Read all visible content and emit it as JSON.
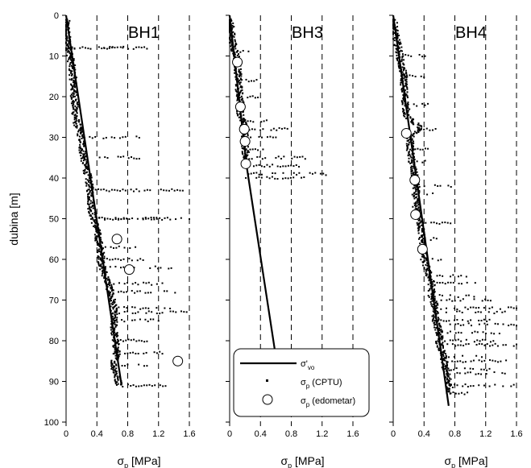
{
  "chart_data": {
    "type": "scatter",
    "y_axis": {
      "label": "dubina [m]",
      "ticks": [
        0,
        10,
        20,
        30,
        40,
        50,
        60,
        70,
        80,
        90,
        100
      ],
      "range": [
        0,
        100
      ],
      "inverted": true
    },
    "x_axis": {
      "label_symbol": "σ",
      "label_subscript": "p",
      "label_unit": " [MPa]",
      "ticks": [
        0,
        0.4,
        0.8,
        1.2,
        1.6
      ],
      "tick_labels": [
        "0",
        "0.4",
        "0.8",
        "1.2",
        "1.6"
      ],
      "range": [
        0,
        1.6
      ],
      "dashed_gridlines": [
        0.4,
        0.8,
        1.2,
        1.6
      ]
    },
    "legend": {
      "placement": "inside BH3 panel, bottom",
      "entries": [
        {
          "symbol": "line",
          "label": "σ'",
          "sub": "vo",
          "suffix": ""
        },
        {
          "symbol": "square",
          "label": "σ",
          "sub": "p",
          "suffix": " (CPTU)"
        },
        {
          "symbol": "circle",
          "label": "σ",
          "sub": "p",
          "suffix": " (edometar)"
        }
      ]
    },
    "panels": [
      {
        "title": "BH1",
        "sigma_vo": [
          [
            0,
            0
          ],
          [
            91,
            0.72
          ]
        ],
        "cptu_profile": [
          [
            1,
            0.0
          ],
          [
            5,
            0.01
          ],
          [
            8,
            0.04
          ],
          [
            12,
            0.07
          ],
          [
            15,
            0.09
          ],
          [
            18,
            0.1
          ],
          [
            22,
            0.11
          ],
          [
            26,
            0.13
          ],
          [
            30,
            0.2
          ],
          [
            33,
            0.21
          ],
          [
            36,
            0.24
          ],
          [
            40,
            0.29
          ],
          [
            44,
            0.32
          ],
          [
            48,
            0.33
          ],
          [
            52,
            0.39
          ],
          [
            55,
            0.42
          ],
          [
            58,
            0.45
          ],
          [
            62,
            0.47
          ],
          [
            66,
            0.55
          ],
          [
            70,
            0.6
          ],
          [
            73,
            0.62
          ],
          [
            77,
            0.62
          ],
          [
            80,
            0.64
          ],
          [
            83,
            0.66
          ],
          [
            86,
            0.62
          ],
          [
            89,
            0.66
          ],
          [
            91,
            0.7
          ]
        ],
        "cptu_outliers": [
          [
            8,
            0.85
          ],
          [
            8,
            1.05
          ],
          [
            30,
            0.95
          ],
          [
            35,
            0.95
          ],
          [
            43,
            1.55
          ],
          [
            50,
            1.25
          ],
          [
            50,
            1.6
          ],
          [
            57,
            0.9
          ],
          [
            60,
            1.0
          ],
          [
            62,
            1.4
          ],
          [
            66,
            1.25
          ],
          [
            68,
            1.45
          ],
          [
            72,
            1.35
          ],
          [
            73,
            1.6
          ],
          [
            75,
            1.2
          ],
          [
            80,
            1.05
          ],
          [
            83,
            1.25
          ],
          [
            86,
            1.05
          ],
          [
            91,
            1.5
          ]
        ],
        "edometer": [
          [
            55,
            0.66
          ],
          [
            62.5,
            0.82
          ],
          [
            85,
            1.45
          ]
        ]
      },
      {
        "title": "BH3",
        "sigma_vo": [
          [
            0,
            0
          ],
          [
            37,
            0.22
          ],
          [
            84,
            0.6
          ]
        ],
        "cptu_profile": [
          [
            1,
            0.0
          ],
          [
            4,
            0.02
          ],
          [
            8,
            0.05
          ],
          [
            10,
            0.09
          ],
          [
            12,
            0.1
          ],
          [
            15,
            0.11
          ],
          [
            18,
            0.12
          ],
          [
            21,
            0.14
          ],
          [
            24,
            0.14
          ],
          [
            27,
            0.18
          ],
          [
            30,
            0.2
          ],
          [
            33,
            0.2
          ],
          [
            35,
            0.22
          ],
          [
            37,
            0.21
          ]
        ],
        "cptu_outliers": [
          [
            9,
            0.28
          ],
          [
            16,
            0.35
          ],
          [
            20,
            0.4
          ],
          [
            26,
            0.55
          ],
          [
            28,
            0.75
          ],
          [
            30,
            0.6
          ],
          [
            33,
            0.5
          ],
          [
            35,
            1.05
          ],
          [
            37,
            0.9
          ],
          [
            39,
            1.25
          ],
          [
            40,
            1.0
          ]
        ],
        "edometer": [
          [
            11.5,
            0.1
          ],
          [
            22.5,
            0.14
          ],
          [
            28,
            0.19
          ],
          [
            31,
            0.2
          ],
          [
            36.5,
            0.21
          ]
        ]
      },
      {
        "title": "BH4",
        "sigma_vo": [
          [
            0,
            0
          ],
          [
            96,
            0.72
          ]
        ],
        "cptu_profile": [
          [
            1,
            0.0
          ],
          [
            5,
            0.03
          ],
          [
            9,
            0.08
          ],
          [
            12,
            0.1
          ],
          [
            15,
            0.14
          ],
          [
            18,
            0.14
          ],
          [
            22,
            0.16
          ],
          [
            25,
            0.18
          ],
          [
            27.5,
            0.35
          ],
          [
            30,
            0.22
          ],
          [
            33,
            0.22
          ],
          [
            36,
            0.24
          ],
          [
            39,
            0.27
          ],
          [
            42,
            0.3
          ],
          [
            45,
            0.29
          ],
          [
            48,
            0.3
          ],
          [
            51,
            0.35
          ],
          [
            54,
            0.37
          ],
          [
            57,
            0.39
          ],
          [
            60,
            0.4
          ],
          [
            63,
            0.45
          ],
          [
            66,
            0.5
          ],
          [
            69,
            0.5
          ],
          [
            72,
            0.55
          ],
          [
            75,
            0.55
          ],
          [
            78,
            0.6
          ],
          [
            81,
            0.6
          ],
          [
            84,
            0.65
          ],
          [
            87,
            0.68
          ],
          [
            90,
            0.72
          ],
          [
            93,
            0.74
          ]
        ],
        "cptu_outliers": [
          [
            10,
            0.45
          ],
          [
            15,
            0.4
          ],
          [
            22,
            0.45
          ],
          [
            28,
            0.55
          ],
          [
            33,
            0.45
          ],
          [
            36,
            0.45
          ],
          [
            42,
            0.75
          ],
          [
            44,
            0.55
          ],
          [
            51,
            0.78
          ],
          [
            55,
            0.6
          ],
          [
            60,
            0.62
          ],
          [
            64,
            0.95
          ],
          [
            66,
            1.1
          ],
          [
            69,
            1.05
          ],
          [
            70,
            1.3
          ],
          [
            72,
            1.6
          ],
          [
            73,
            1.45
          ],
          [
            75,
            1.25
          ],
          [
            76,
            1.6
          ],
          [
            78,
            1.45
          ],
          [
            80,
            1.3
          ],
          [
            81,
            1.6
          ],
          [
            84,
            1.15
          ],
          [
            85,
            1.5
          ],
          [
            87,
            1.25
          ],
          [
            88,
            1.45
          ],
          [
            91,
            1.6
          ],
          [
            93,
            1.0
          ]
        ],
        "edometer": [
          [
            29,
            0.17
          ],
          [
            40.5,
            0.28
          ],
          [
            49,
            0.29
          ],
          [
            57.5,
            0.38
          ]
        ]
      }
    ]
  }
}
